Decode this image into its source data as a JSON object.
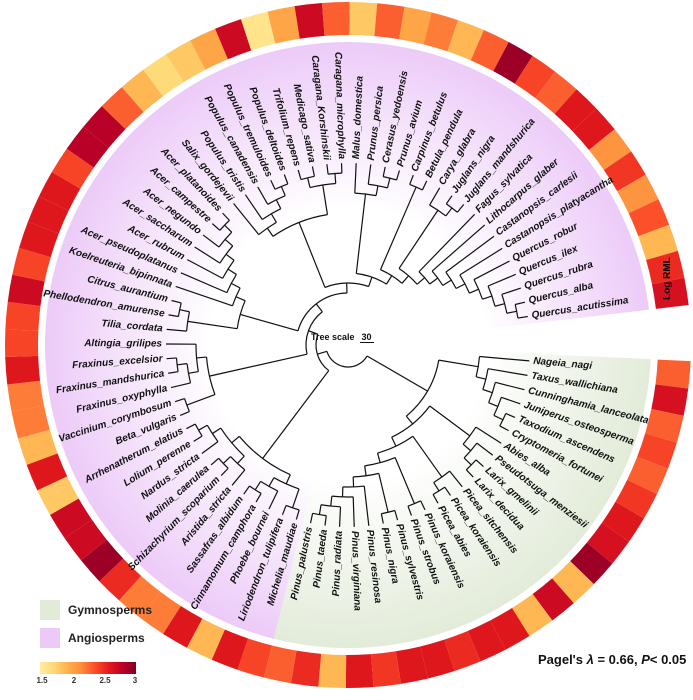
{
  "tree_scale": {
    "label": "Tree scale",
    "value": "30"
  },
  "ring_label": "Log RML",
  "stat": {
    "prefix": "Pagel's ",
    "lambda": "λ",
    "mid": " = 0.66, ",
    "p": "P",
    "tail": "< 0.05"
  },
  "legend": {
    "groups": [
      {
        "label": "Gymnosperms",
        "color": "#e2ebd8"
      },
      {
        "label": "Angiosperms",
        "color": "#eccaf8"
      }
    ],
    "colorbar": {
      "min": 1.5,
      "max": 3,
      "ticks": [
        "1.5",
        "2",
        "2.5",
        "3"
      ],
      "colors": [
        "#ffeda0",
        "#fed976",
        "#feb24c",
        "#fd8d3c",
        "#fc4e2a",
        "#e31a1c",
        "#bd0026",
        "#800026"
      ]
    }
  },
  "groups": [
    {
      "name": "Gymnosperms",
      "first": "Nageia_nagi",
      "last": "Pinus_palustris",
      "color": "#e2ebd8"
    },
    {
      "name": "Angiosperms",
      "first": "Michelia_maudiae",
      "last": "Quercus_acutissima",
      "color": "#eccaf8"
    }
  ],
  "topology": [
    [
      [
        "Nageia_nagi",
        [
          "Taxus_wallichiana",
          [
            "Cunninghamia_lanceolata",
            [
              "Juniperus_osteosperma",
              [
                "Taxodium_ascendens",
                "Cryptomeria_fortunei"
              ]
            ]
          ]
        ]
      ],
      [
        [
          "Abies_alba",
          [
            "Pseudotsuga_menziesii",
            [
              "Larix_gmelinii",
              "Larix_decidua"
            ]
          ]
        ],
        [
          [
            "Picea_sitchensis",
            [
              "Picea_koraiensis",
              "Picea_abies"
            ]
          ],
          [
            [
              "Pinus_koraiensis",
              "Pinus_strobus"
            ],
            [
              [
                "Pinus_sylvestris",
                "Pinus_nigra"
              ],
              [
                "Pinus_resinosa",
                [
                  "Pinus_virginiana",
                  [
                    "Pinus_radiata",
                    [
                      "Pinus_taeda",
                      "Pinus_palustris"
                    ]
                  ]
                ]
              ]
            ]
          ]
        ]
      ]
    ],
    [
      [
        [
          [
            "Michelia_maudiae",
            "Liriodendron_tulipifera"
          ],
          [
            "Phoebe_bournei",
            [
              "Cinnamomum_camphora",
              "Sassafras_albidum"
            ]
          ]
        ],
        [
          [
            "Aristida_stricta",
            [
              "Schizachyrium_scoparium",
              "Molinia_caerulea"
            ]
          ],
          [
            "Nardus_stricta",
            [
              "Lolium_perenne",
              "Arrhenatherum_elatius"
            ]
          ]
        ]
      ],
      [
        [
          [
            "Beta_vulgaris",
            "Vaccinium_corymbosum"
          ],
          [
            [
              "Fraxinus_oxyphylla",
              [
                "Fraxinus_mandshurica",
                "Fraxinus_excelsior"
              ]
            ],
            "Altingia_grilipes"
          ]
        ],
        [
          [
            [
              "Tilia_cordata",
              [
                "Phellodendron_amurense",
                "Citrus_aurantium"
              ]
            ],
            [
              "Koelreuteria_bipinnata",
              [
                "Acer_pseudoplatanus",
                [
                  "Acer_rubrum",
                  [
                    "Acer_saccharum",
                    [
                      "Acer_negundo",
                      [
                        "Acer_campestre",
                        "Acer_platanoides"
                      ]
                    ]
                  ]
                ]
              ]
            ]
          ],
          [
            [
              [
                "Salix_gordejevii",
                [
                  "Populus_tristis",
                  [
                    "Populus_canadensis",
                    [
                      "Populus_tremuloides",
                      "Populus_deltoides"
                    ]
                  ]
                ]
              ],
              [
                [
                  "Trifolium_repens",
                  "Medicago_sativa"
                ],
                [
                  "Caragana_Korshinskii",
                  "Caragana_microphylla"
                ]
              ]
            ],
            [
              [
                "Malus_domestica",
                [
                  "Prunus_persica",
                  [
                    "Cerasus_yedoensis",
                    "Prunus_avium"
                  ]
                ]
              ],
              [
                [
                  "Carpinus_betulus",
                  "Betula_pendula"
                ],
                [
                  [
                    "Carya_glabra",
                    [
                      "Juglans_nigra",
                      "Juglans_mandshurica"
                    ]
                  ],
                  [
                    "Fagus_sylvatica",
                    [
                      "Lithocarpus_glaber",
                      [
                        "Castanopsis_carlesii",
                        [
                          "Castanopsis_platyacantha",
                          [
                            "Quercus_robur",
                            [
                              "Quercus_ilex",
                              [
                                "Quercus_rubra",
                                [
                                  "Quercus_alba",
                                  "Quercus_acutissima"
                                ]
                              ]
                            ]
                          ]
                        ]
                      ]
                    ]
                  ]
                ]
              ]
            ]
          ]
        ]
      ]
    ]
  ],
  "log_rml": {
    "Nageia_nagi": 2.3,
    "Taxus_wallichiana": 2.65,
    "Cunninghamia_lanceolata": 2.3,
    "Juniperus_osteosperma": 2.4,
    "Taxodium_ascendens": 2.3,
    "Cryptomeria_fortunei": 2.45,
    "Abies_alba": 2.6,
    "Pseudotsuga_menziesii": 2.65,
    "Larix_gmelinii": 2.9,
    "Larix_decidua": 1.9,
    "Picea_sitchensis": 2.7,
    "Picea_koraiensis": 1.9,
    "Picea_abies": 2.6,
    "Pinus_koraiensis": 2.6,
    "Pinus_strobus": 2.5,
    "Pinus_sylvestris": 2.6,
    "Pinus_nigra": 2.6,
    "Pinus_resinosa": 2.45,
    "Pinus_virginiana": 2.6,
    "Pinus_radiata": 1.9,
    "Pinus_taeda": 2.5,
    "Pinus_palustris": 2.3,
    "Michelia_maudiae": 2.4,
    "Liriodendron_tulipifera": 2.6,
    "Phoebe_bournei": 1.9,
    "Cinnamomum_camphora": 2.6,
    "Sassafras_albidum": 2.2,
    "Aristida_stricta": 2.2,
    "Schizachyrium_scoparium": 2.5,
    "Molinia_caerulea": 2.9,
    "Nardus_stricta": 2.7,
    "Lolium_perenne": 2.7,
    "Arrhenatherum_elatius": 1.8,
    "Beta_vulgaris": 2.6,
    "Vaccinium_corymbosum": 1.9,
    "Fraxinus_oxyphylla": 2.2,
    "Fraxinus_mandshurica": 2.2,
    "Fraxinus_excelsior": 2.6,
    "Altingia_grilipes": 2.4,
    "Tilia_cordata": 2.4,
    "Phellodendron_amurense": 2.7,
    "Citrus_aurantium": 2.4,
    "Koelreuteria_bipinnata": 2.6,
    "Acer_pseudoplatanus": 2.6,
    "Acer_rubrum": 2.6,
    "Acer_saccharum": 2.4,
    "Acer_negundo": 2.8,
    "Acer_campestre": 2.8,
    "Acer_platanoides": 2.3,
    "Salix_gordejevii": 1.9,
    "Populus_tristis": 1.7,
    "Populus_canadensis": 1.8,
    "Populus_tremuloides": 2.0,
    "Populus_deltoides": 2.7,
    "Trifolium_repens": 1.6,
    "Medicago_sativa": 2.0,
    "Caragana_Korshinskii": 2.7,
    "Caragana_microphylla": 2.3,
    "Malus_domestica": 1.8,
    "Prunus_persica": 2.3,
    "Cerasus_yedoensis": 2.0,
    "Prunus_avium": 2.2,
    "Carpinus_betulus": 1.9,
    "Betula_pendula": 2.3,
    "Carya_glabra": 2.9,
    "Juglans_nigra": 2.4,
    "Juglans_mandshurica": 2.3,
    "Fagus_sylvatica": 2.6,
    "Lithocarpus_glaber": 2.6,
    "Castanopsis_carlesii": 2.1,
    "Castanopsis_platyacantha": 2.45,
    "Quercus_robur": 2.1,
    "Quercus_ilex": 2.35,
    "Quercus_rubra": 1.9,
    "Quercus_alba": 2.5,
    "Quercus_acutissima": 2.65
  }
}
